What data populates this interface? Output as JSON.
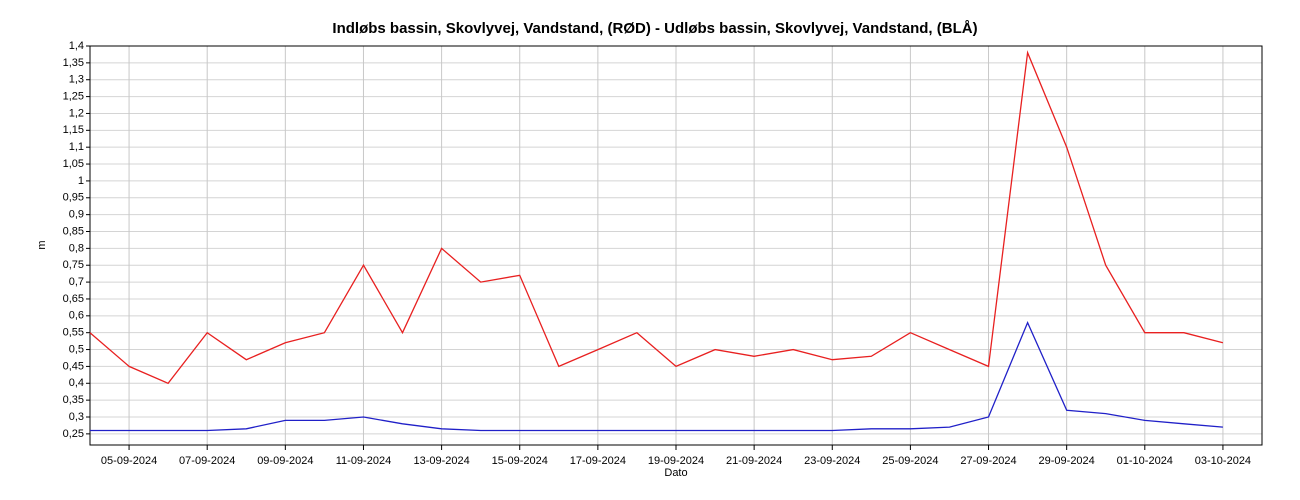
{
  "chart_data": {
    "type": "line",
    "title": "Indløbs bassin, Skovlyvej, Vandstand, (RØD)  -  Udløbs bassin, Skovlyvej, Vandstand, (BLÅ)",
    "x_label": "Dato",
    "y_label": "m",
    "x": [
      "04-09-2024",
      "05-09-2024",
      "06-09-2024",
      "07-09-2024",
      "08-09-2024",
      "09-09-2024",
      "10-09-2024",
      "11-09-2024",
      "12-09-2024",
      "13-09-2024",
      "14-09-2024",
      "15-09-2024",
      "16-09-2024",
      "17-09-2024",
      "18-09-2024",
      "19-09-2024",
      "20-09-2024",
      "21-09-2024",
      "22-09-2024",
      "23-09-2024",
      "24-09-2024",
      "25-09-2024",
      "26-09-2024",
      "27-09-2024",
      "28-09-2024",
      "29-09-2024",
      "30-09-2024",
      "01-10-2024",
      "02-10-2024",
      "03-10-2024"
    ],
    "series": [
      {
        "name": "Indløbs bassin",
        "color": "#e82020",
        "values": [
          0.55,
          0.45,
          0.4,
          0.55,
          0.47,
          0.52,
          0.55,
          0.75,
          0.55,
          0.8,
          0.7,
          0.72,
          0.45,
          0.5,
          0.55,
          0.45,
          0.5,
          0.48,
          0.5,
          0.47,
          0.48,
          0.55,
          0.5,
          0.45,
          1.38,
          1.1,
          0.75,
          0.55,
          0.55,
          0.52
        ]
      },
      {
        "name": "Udløbs bassin",
        "color": "#2020c8",
        "values": [
          0.26,
          0.26,
          0.26,
          0.26,
          0.265,
          0.29,
          0.29,
          0.3,
          0.28,
          0.265,
          0.26,
          0.26,
          0.26,
          0.26,
          0.26,
          0.26,
          0.26,
          0.26,
          0.26,
          0.26,
          0.265,
          0.265,
          0.27,
          0.3,
          0.58,
          0.32,
          0.31,
          0.29,
          0.28,
          0.27
        ]
      }
    ],
    "xlim": [
      "04-09-2024",
      "04-10-2024"
    ],
    "xticks": [
      "05-09-2024",
      "07-09-2024",
      "09-09-2024",
      "11-09-2024",
      "13-09-2024",
      "15-09-2024",
      "17-09-2024",
      "19-09-2024",
      "21-09-2024",
      "23-09-2024",
      "25-09-2024",
      "27-09-2024",
      "29-09-2024",
      "01-10-2024",
      "03-10-2024"
    ],
    "ylim": [
      0.217,
      1.4
    ],
    "yticks": [
      {
        "value": 0.25,
        "label": "0,25"
      },
      {
        "value": 0.3,
        "label": "0,3"
      },
      {
        "value": 0.35,
        "label": "0,35"
      },
      {
        "value": 0.4,
        "label": "0,4"
      },
      {
        "value": 0.45,
        "label": "0,45"
      },
      {
        "value": 0.5,
        "label": "0,5"
      },
      {
        "value": 0.55,
        "label": "0,55"
      },
      {
        "value": 0.6,
        "label": "0,6"
      },
      {
        "value": 0.65,
        "label": "0,65"
      },
      {
        "value": 0.7,
        "label": "0,7"
      },
      {
        "value": 0.75,
        "label": "0,75"
      },
      {
        "value": 0.8,
        "label": "0,8"
      },
      {
        "value": 0.85,
        "label": "0,85"
      },
      {
        "value": 0.9,
        "label": "0,9"
      },
      {
        "value": 0.95,
        "label": "0,95"
      },
      1,
      {
        "value": 1.05,
        "label": "1,05"
      },
      {
        "value": 1.1,
        "label": "1,1"
      },
      {
        "value": 1.15,
        "label": "1,15"
      },
      {
        "value": 1.2,
        "label": "1,2"
      },
      {
        "value": 1.25,
        "label": "1,25"
      },
      {
        "value": 1.3,
        "label": "1,3"
      },
      {
        "value": 1.35,
        "label": "1,35"
      },
      {
        "value": 1.4,
        "label": "1,4"
      }
    ],
    "grid": true
  }
}
